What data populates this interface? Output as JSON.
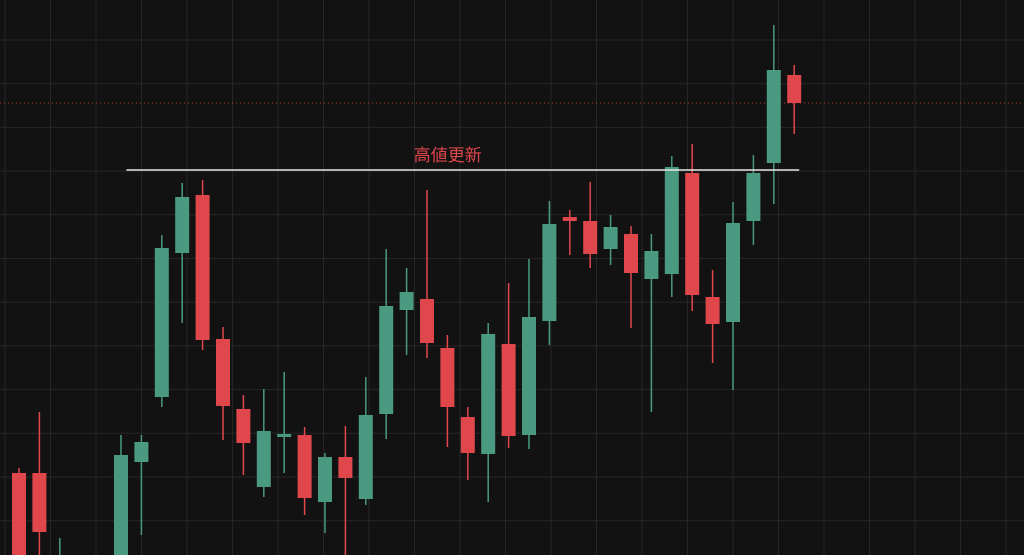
{
  "chart_data": {
    "type": "candlestick",
    "title": "",
    "xlabel": "",
    "ylabel": "",
    "ylim": [
      0,
      555
    ],
    "grid": true,
    "colors": {
      "background": "#121212",
      "grid": "#262626",
      "up": "#4a9a82",
      "down": "#e0474c",
      "resistance": "#e6e6e6",
      "price_line": "#c0392b",
      "annotation": "#e0474c"
    },
    "candles": [
      {
        "i": 0,
        "open": 82,
        "close": 0,
        "high": 87,
        "low": 0
      },
      {
        "i": 1,
        "open": 82,
        "close": 23,
        "high": 143,
        "low": 0
      },
      {
        "i": 2,
        "open": 0,
        "close": 0,
        "high": 17,
        "low": 0
      },
      {
        "i": 3,
        "open": 0,
        "close": 0,
        "high": 0,
        "low": 0
      },
      {
        "i": 4,
        "open": 0,
        "close": 0,
        "high": 0,
        "low": 0
      },
      {
        "i": 5,
        "open": 0,
        "close": 100,
        "high": 120,
        "low": 0
      },
      {
        "i": 6,
        "open": 93,
        "close": 113,
        "high": 120,
        "low": 20
      },
      {
        "i": 7,
        "open": 158,
        "close": 307,
        "high": 320,
        "low": 148
      },
      {
        "i": 8,
        "open": 302,
        "close": 358,
        "high": 372,
        "low": 232
      },
      {
        "i": 9,
        "open": 360,
        "close": 215,
        "high": 375,
        "low": 205
      },
      {
        "i": 10,
        "open": 216,
        "close": 149,
        "high": 228,
        "low": 115
      },
      {
        "i": 11,
        "open": 146,
        "close": 112,
        "high": 160,
        "low": 80
      },
      {
        "i": 12,
        "open": 68,
        "close": 124,
        "high": 166,
        "low": 58
      },
      {
        "i": 13,
        "open": 120,
        "close": 121,
        "high": 183,
        "low": 82
      },
      {
        "i": 14,
        "open": 120,
        "close": 57,
        "high": 128,
        "low": 40
      },
      {
        "i": 15,
        "open": 53,
        "close": 98,
        "high": 102,
        "low": 22
      },
      {
        "i": 16,
        "open": 98,
        "close": 77,
        "high": 129,
        "low": 0
      },
      {
        "i": 17,
        "open": 56,
        "close": 140,
        "high": 178,
        "low": 50
      },
      {
        "i": 18,
        "open": 141,
        "close": 249,
        "high": 306,
        "low": 116
      },
      {
        "i": 19,
        "open": 245,
        "close": 263,
        "high": 287,
        "low": 200
      },
      {
        "i": 20,
        "open": 256,
        "close": 212,
        "high": 365,
        "low": 197
      },
      {
        "i": 21,
        "open": 207,
        "close": 148,
        "high": 220,
        "low": 108
      },
      {
        "i": 22,
        "open": 138,
        "close": 102,
        "high": 148,
        "low": 75
      },
      {
        "i": 23,
        "open": 101,
        "close": 221,
        "high": 232,
        "low": 53
      },
      {
        "i": 24,
        "open": 211,
        "close": 119,
        "high": 272,
        "low": 107
      },
      {
        "i": 25,
        "open": 120,
        "close": 238,
        "high": 296,
        "low": 106
      },
      {
        "i": 26,
        "open": 234,
        "close": 331,
        "high": 354,
        "low": 210
      },
      {
        "i": 27,
        "open": 338,
        "close": 334,
        "high": 345,
        "low": 300
      },
      {
        "i": 28,
        "open": 334,
        "close": 301,
        "high": 373,
        "low": 287
      },
      {
        "i": 29,
        "open": 306,
        "close": 328,
        "high": 340,
        "low": 290
      },
      {
        "i": 30,
        "open": 321,
        "close": 282,
        "high": 329,
        "low": 227
      },
      {
        "i": 31,
        "open": 276,
        "close": 304,
        "high": 321,
        "low": 143
      },
      {
        "i": 32,
        "open": 281,
        "close": 388,
        "high": 399,
        "low": 258
      },
      {
        "i": 33,
        "open": 382,
        "close": 260,
        "high": 411,
        "low": 244
      },
      {
        "i": 34,
        "open": 258,
        "close": 231,
        "high": 285,
        "low": 192
      },
      {
        "i": 35,
        "open": 233,
        "close": 332,
        "high": 353,
        "low": 165
      },
      {
        "i": 36,
        "open": 334,
        "close": 382,
        "high": 400,
        "low": 310
      },
      {
        "i": 37,
        "open": 392,
        "close": 485,
        "high": 530,
        "low": 351
      },
      {
        "i": 38,
        "open": 480,
        "close": 452,
        "high": 490,
        "low": 421
      }
    ],
    "resistance_line": {
      "value": 385,
      "from_index": 6,
      "to_index": 38
    },
    "current_price": 452,
    "annotations": [
      {
        "text": "高値更新",
        "near_index": 22,
        "value": 385
      }
    ]
  }
}
